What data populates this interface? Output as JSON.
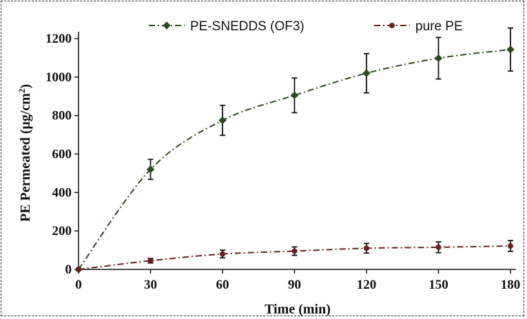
{
  "chart_data": {
    "type": "line",
    "title": "",
    "xlabel": "Time (min)",
    "ylabel_prefix": "PE Permeated (μg/cm",
    "ylabel_sup": "2",
    "ylabel_suffix": ")",
    "x": [
      0,
      30,
      60,
      90,
      120,
      150,
      180
    ],
    "xticks": [
      0,
      30,
      60,
      90,
      120,
      150,
      180
    ],
    "yticks": [
      0,
      200,
      400,
      600,
      800,
      1000,
      1200
    ],
    "xlim": [
      0,
      180
    ],
    "ylim": [
      0,
      1200
    ],
    "grid": false,
    "legend_position": "top",
    "series": [
      {
        "name": "PE-SNEDDS (OF3)",
        "color": "#2e4a1f",
        "marker": "diamond",
        "values": [
          0,
          520,
          775,
          905,
          1020,
          1098,
          1143
        ],
        "error": [
          0,
          52,
          78,
          90,
          102,
          108,
          112
        ]
      },
      {
        "name": "pure PE",
        "color": "#6b1f1f",
        "marker": "circle",
        "values": [
          0,
          45,
          80,
          95,
          110,
          115,
          122
        ],
        "error": [
          0,
          12,
          20,
          22,
          25,
          28,
          28
        ]
      }
    ]
  }
}
